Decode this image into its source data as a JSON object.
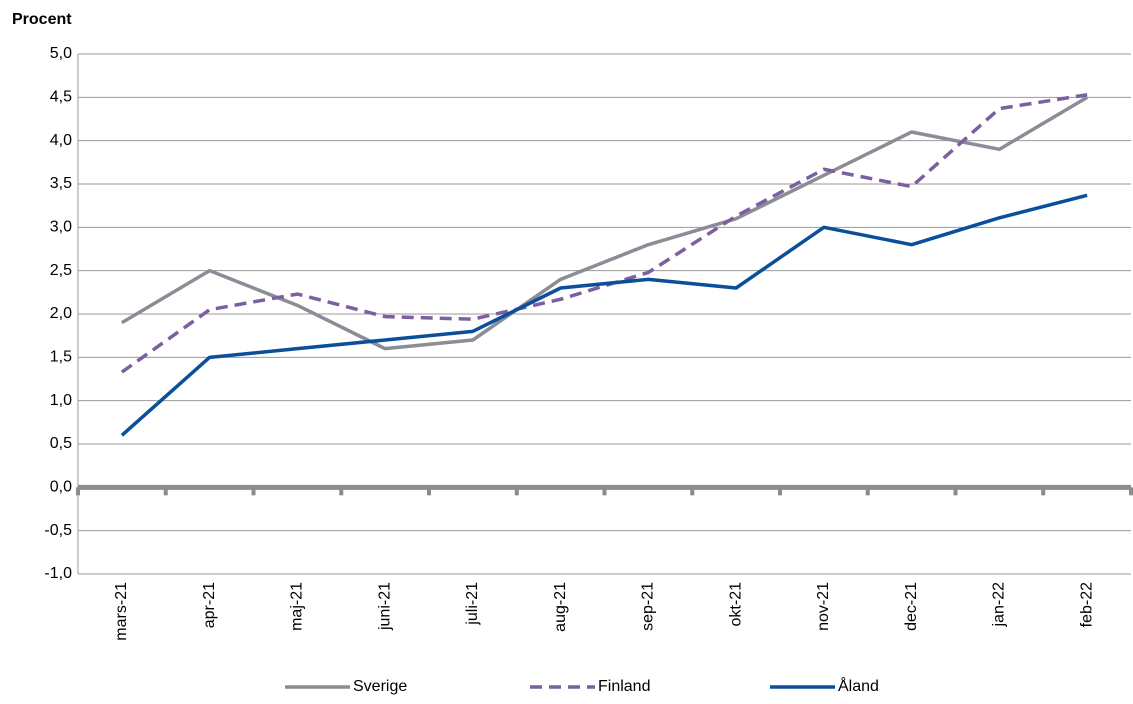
{
  "chart_data": {
    "type": "line",
    "y_label": "Procent",
    "categories": [
      "mars-21",
      "apr-21",
      "maj-21",
      "juni-21",
      "juli-21",
      "aug-21",
      "sep-21",
      "okt-21",
      "nov-21",
      "dec-21",
      "jan-22",
      "feb-22"
    ],
    "series": [
      {
        "name": "Sverige",
        "color": "#8c8c96",
        "dashed": false,
        "values": [
          1.9,
          2.5,
          2.1,
          1.6,
          1.7,
          2.4,
          2.8,
          3.1,
          3.6,
          4.1,
          3.9,
          4.5
        ]
      },
      {
        "name": "Finland",
        "color": "#7b5fa0",
        "dashed": true,
        "values": [
          1.33,
          2.05,
          2.23,
          1.97,
          1.94,
          2.17,
          2.48,
          3.13,
          3.67,
          3.47,
          4.37,
          4.53
        ]
      },
      {
        "name": "Åland",
        "color": "#0b4f9a",
        "dashed": false,
        "values": [
          0.6,
          1.5,
          1.6,
          1.7,
          1.8,
          2.3,
          2.4,
          2.3,
          3.0,
          2.8,
          3.11,
          3.37
        ]
      }
    ],
    "ylim": [
      -1,
      5
    ],
    "yticks": [
      {
        "value": -1,
        "label": "-1,0"
      },
      {
        "value": -0.5,
        "label": "-0,5"
      },
      {
        "value": 0,
        "label": "0,0"
      },
      {
        "value": 0.5,
        "label": "0,5"
      },
      {
        "value": 1,
        "label": "1,0"
      },
      {
        "value": 1.5,
        "label": "1,5"
      },
      {
        "value": 2,
        "label": "2,0"
      },
      {
        "value": 2.5,
        "label": "2,5"
      },
      {
        "value": 3,
        "label": "3,0"
      },
      {
        "value": 3.5,
        "label": "3,5"
      },
      {
        "value": 4,
        "label": "4,0"
      },
      {
        "value": 4.5,
        "label": "4,5"
      },
      {
        "value": 5,
        "label": "5,0"
      }
    ],
    "grid": true
  }
}
